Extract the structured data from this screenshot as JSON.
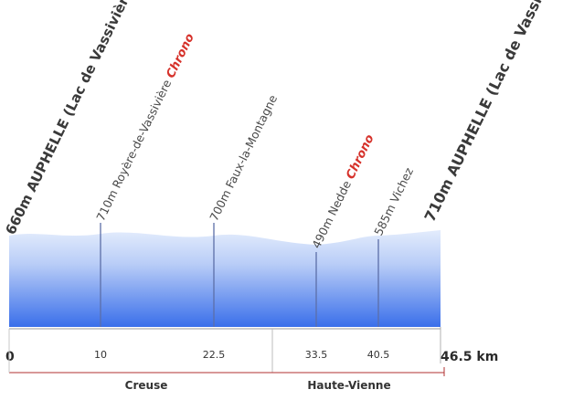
{
  "start": {
    "altitude": "660m",
    "name": "AUPHELLE (Lac de Vassivière)"
  },
  "finish": {
    "altitude": "710m",
    "name": "AUPHELLE (Lac de Vassivière)"
  },
  "waypoints": [
    {
      "altitude": "710m",
      "name": "Royère-de-Vassivière",
      "chrono": "Chrono",
      "km": "10"
    },
    {
      "altitude": "700m",
      "name": "Faux-la-Montagne",
      "chrono": "",
      "km": "22.5"
    },
    {
      "altitude": "490m",
      "name": "Nedde",
      "chrono": "Chrono",
      "km": "33.5"
    },
    {
      "altitude": "585m",
      "name": "Vichez",
      "chrono": "",
      "km": "40.5"
    }
  ],
  "axis": {
    "start_label": "0",
    "end_label": "46.5 km"
  },
  "departments": [
    "Creuse",
    "Haute-Vienne"
  ],
  "colors": {
    "profile_top": "#dde8fb",
    "profile_bottom": "#3a6fea",
    "chrono": "#d6322b",
    "divider": "#b03030"
  }
}
